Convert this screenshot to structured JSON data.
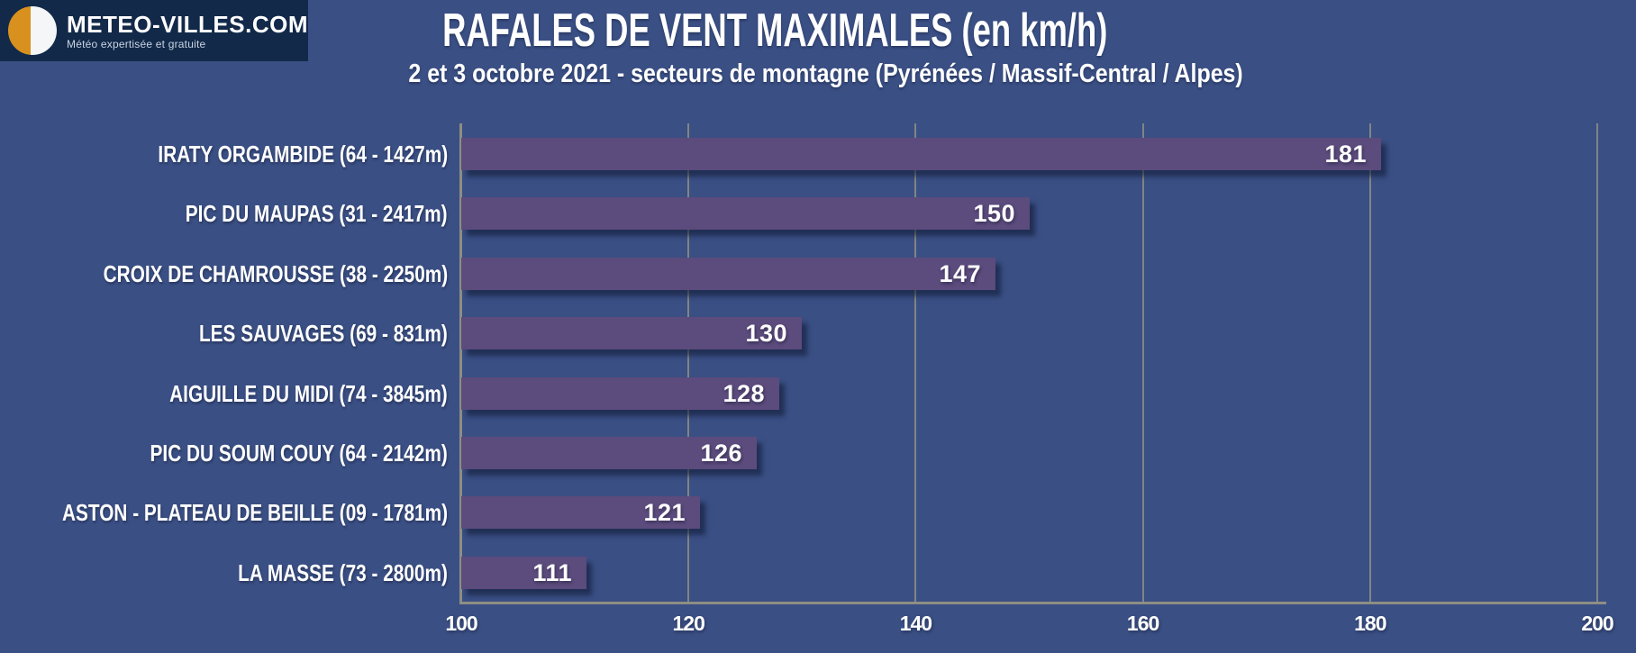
{
  "logo": {
    "title": "METEO-VILLES.COM",
    "tagline": "Météo expertisée et gratuite"
  },
  "colors": {
    "background": "#3A4F84",
    "bar": "#5C4B7D",
    "axis": "#8E8E82",
    "text": "#FFFFFF",
    "logo_background": "#122949",
    "logo_orange": "#D8911E"
  },
  "chart_data": {
    "type": "bar",
    "orientation": "horizontal",
    "title": "RAFALES DE VENT MAXIMALES (en km/h)",
    "subtitle": "2 et 3 octobre 2021 - secteurs de montagne (Pyrénées / Massif-Central / Alpes)",
    "unit": "km/h",
    "categories": [
      "IRATY ORGAMBIDE (64 - 1427m)",
      "PIC DU MAUPAS (31 - 2417m)",
      "CROIX DE CHAMROUSSE (38 - 2250m)",
      "LES SAUVAGES (69 - 831m)",
      "AIGUILLE DU MIDI (74 - 3845m)",
      "PIC DU SOUM COUY (64 - 2142m)",
      "ASTON - PLATEAU DE BEILLE (09 - 1781m)",
      "LA MASSE (73 - 2800m)"
    ],
    "values": [
      181,
      150,
      147,
      130,
      128,
      126,
      121,
      111
    ],
    "xlim": [
      100,
      200
    ],
    "xticks": [
      100,
      120,
      140,
      160,
      180,
      200
    ],
    "grid": true,
    "legend": false,
    "value_labels": "inside-end"
  }
}
